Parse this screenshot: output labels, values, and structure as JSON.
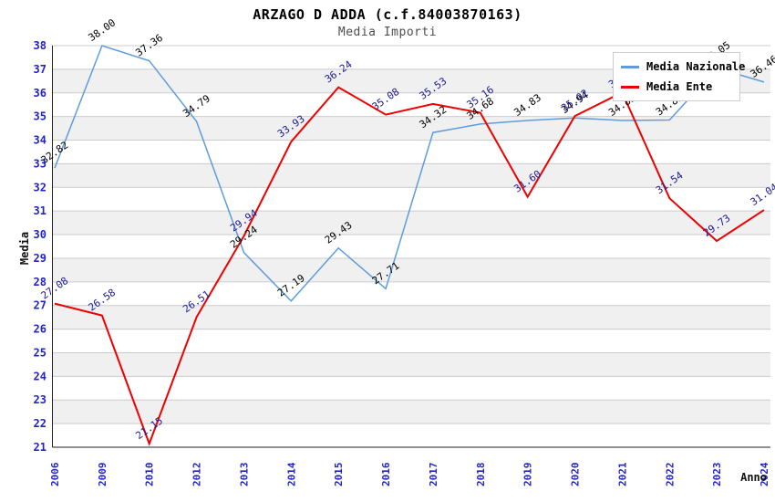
{
  "chart_data": {
    "type": "line",
    "title": "ARZAGO D ADDA (c.f.84003870163)",
    "subtitle": "Media Importi",
    "xlabel": "Anno",
    "ylabel": "Media",
    "ylim": [
      21,
      38
    ],
    "ytick_step": 1,
    "grid": "horizontal",
    "band_colors": [
      "#FFFFFF",
      "#F0F0F0"
    ],
    "legend_position": "top-right",
    "axis_tick_label_color": "#2323CB",
    "categories": [
      "2006",
      "2009",
      "2010",
      "2012",
      "2013",
      "2014",
      "2015",
      "2016",
      "2017",
      "2018",
      "2019",
      "2020",
      "2021",
      "2022",
      "2023",
      "2024"
    ],
    "series": [
      {
        "name": "Media Nazionale",
        "color": "#5D9CDE",
        "label_color": "#000000",
        "values": [
          32.82,
          38.0,
          37.36,
          34.79,
          29.24,
          27.19,
          29.43,
          27.71,
          34.32,
          34.68,
          34.83,
          34.94,
          34.83,
          34.85,
          37.05,
          36.46
        ],
        "labels": [
          "32.82",
          "38.00",
          "37.36",
          "34.79",
          "29.24",
          "27.19",
          "29.43",
          "27.71",
          "34.32",
          "34.68",
          "34.83",
          "34.94",
          "34.83",
          "34.85",
          "37.05",
          "36.46"
        ]
      },
      {
        "name": "Media Ente",
        "color": "#EE0000",
        "label_color": "#1A1A99",
        "values": [
          27.08,
          26.58,
          21.15,
          26.51,
          29.94,
          33.93,
          36.24,
          35.08,
          35.53,
          35.16,
          31.6,
          35.02,
          36.02,
          31.54,
          29.73,
          31.04
        ],
        "labels": [
          "27.08",
          "26.58",
          "21.15",
          "26.51",
          "29.94",
          "33.93",
          "36.24",
          "35.08",
          "35.53",
          "35.16",
          "31.60",
          "35.02",
          "36.02",
          "31.54",
          "29.73",
          "31.04"
        ]
      }
    ]
  }
}
